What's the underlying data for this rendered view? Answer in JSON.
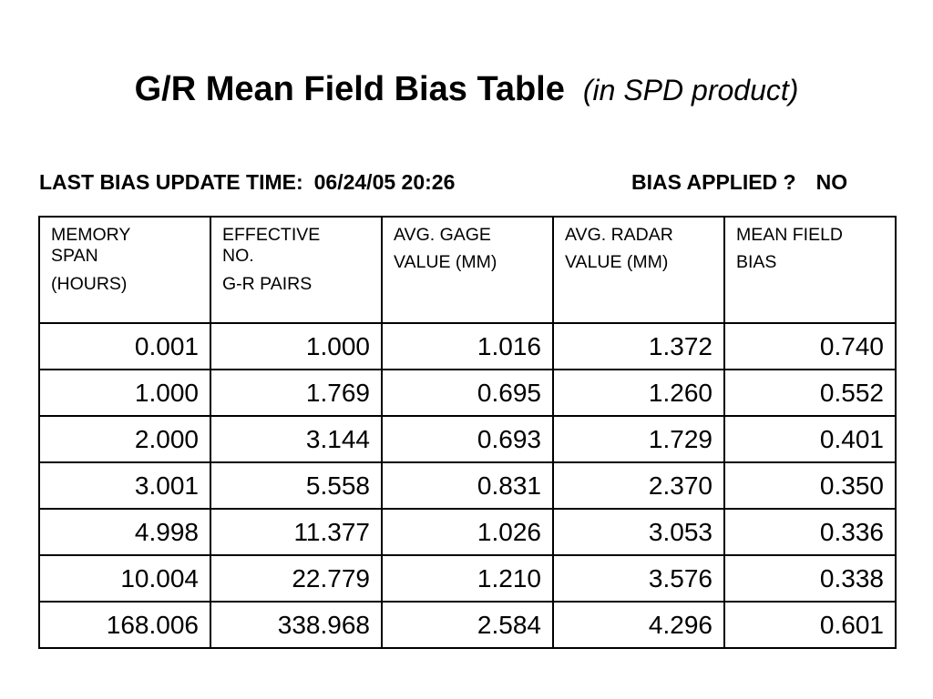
{
  "title": {
    "main": "G/R Mean Field Bias Table",
    "sub": "(in SPD product)"
  },
  "info": {
    "update_label": "LAST BIAS UPDATE TIME:",
    "update_value": "06/24/05 20:26",
    "applied_label": "BIAS APPLIED ?",
    "applied_value": "NO"
  },
  "table": {
    "headers": [
      {
        "lines": [
          "MEMORY",
          "SPAN",
          "(HOURS)"
        ]
      },
      {
        "lines": [
          "EFFECTIVE",
          "NO.",
          "G-R PAIRS"
        ]
      },
      {
        "lines": [
          "AVG. GAGE",
          "VALUE (MM)"
        ]
      },
      {
        "lines": [
          "AVG. RADAR",
          "VALUE (MM)"
        ]
      },
      {
        "lines": [
          "MEAN FIELD",
          "BIAS"
        ]
      }
    ],
    "rows": [
      [
        "0.001",
        "1.000",
        "1.016",
        "1.372",
        "0.740"
      ],
      [
        "1.000",
        "1.769",
        "0.695",
        "1.260",
        "0.552"
      ],
      [
        "2.000",
        "3.144",
        "0.693",
        "1.729",
        "0.401"
      ],
      [
        "3.001",
        "5.558",
        "0.831",
        "2.370",
        "0.350"
      ],
      [
        "4.998",
        "11.377",
        "1.026",
        "3.053",
        "0.336"
      ],
      [
        "10.004",
        "22.779",
        "1.210",
        "3.576",
        "0.338"
      ],
      [
        "168.006",
        "338.968",
        "2.584",
        "4.296",
        "0.601"
      ]
    ]
  }
}
